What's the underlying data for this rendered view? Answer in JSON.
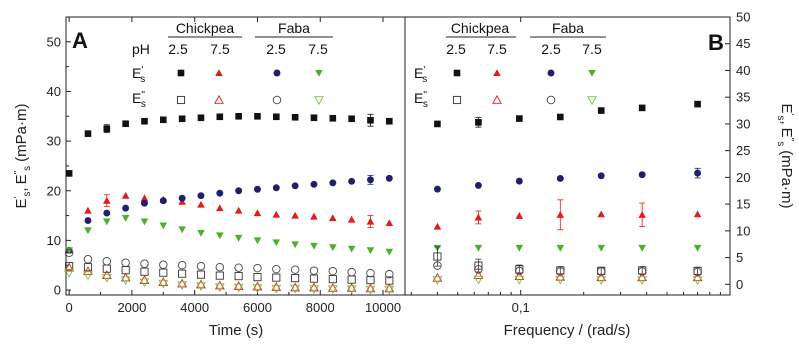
{
  "chart_data": [
    {
      "panel": "A",
      "type": "scatter",
      "xlabel": "Time (s)",
      "ylabel_main": "E",
      "ylabel_unit": "(mPa·m)",
      "xlim": [
        -100,
        10700
      ],
      "ylim": [
        -1,
        55
      ],
      "xticks": [
        0,
        2000,
        4000,
        6000,
        8000,
        10000
      ],
      "xtick_labels": [
        "0",
        "2000",
        "4000",
        "6000",
        "8000",
        "10000"
      ],
      "yticks": [
        0,
        10,
        20,
        30,
        40,
        50
      ],
      "ytick_labels": [
        "0",
        "10",
        "20",
        "30",
        "40",
        "50"
      ],
      "series": [
        {
          "key": "cp25_e1",
          "marker": "square",
          "filled": true,
          "color": "#111111",
          "x": [
            0,
            600,
            1200,
            1800,
            2400,
            3000,
            3600,
            4200,
            4800,
            5400,
            6000,
            6600,
            7200,
            7800,
            8400,
            9000,
            9600,
            10200
          ],
          "y": [
            23.5,
            31.5,
            32.5,
            33.5,
            34,
            34.3,
            34.5,
            34.7,
            34.9,
            35,
            35,
            34.9,
            34.8,
            34.7,
            34.6,
            34.5,
            34.2,
            34
          ],
          "err": [
            0,
            0,
            0.8,
            0,
            0,
            0,
            0,
            0,
            0,
            0,
            0,
            0,
            0,
            0,
            0,
            0,
            1.2,
            0
          ]
        },
        {
          "key": "cp75_e1",
          "marker": "triangle-up",
          "filled": true,
          "color": "#e41a1c",
          "x": [
            0,
            600,
            1200,
            1800,
            2400,
            3000,
            3600,
            4200,
            4800,
            5400,
            6000,
            6600,
            7200,
            7800,
            8400,
            9000,
            9600,
            10200
          ],
          "y": [
            8,
            16,
            18,
            19,
            18.5,
            18.2,
            17.8,
            17.2,
            16.5,
            16,
            15.5,
            15.2,
            15,
            14.8,
            14.5,
            14.2,
            13.8,
            13.5
          ],
          "err": [
            0,
            0,
            1.2,
            0,
            0,
            0,
            0,
            0,
            0,
            0,
            0,
            0,
            0,
            0,
            0,
            0,
            1.2,
            0
          ]
        },
        {
          "key": "fb25_e1",
          "marker": "circle",
          "filled": true,
          "color": "#1f1f6e",
          "x": [
            0,
            600,
            1200,
            1800,
            2400,
            3000,
            3600,
            4200,
            4800,
            5400,
            6000,
            6600,
            7200,
            7800,
            8400,
            9000,
            9600,
            10200
          ],
          "y": [
            8,
            14,
            15.5,
            16.5,
            17.5,
            18,
            18.5,
            19,
            19.5,
            20,
            20.3,
            20.6,
            21,
            21.3,
            21.6,
            21.9,
            22.2,
            22.5
          ],
          "err": [
            0,
            0,
            0,
            0,
            0,
            0,
            0,
            0,
            0,
            0,
            0,
            0,
            0,
            0,
            0,
            0,
            0.9,
            0
          ]
        },
        {
          "key": "fb75_e1",
          "marker": "triangle-down",
          "filled": true,
          "color": "#4daf2a",
          "x": [
            0,
            600,
            1200,
            1800,
            2400,
            3000,
            3600,
            4200,
            4800,
            5400,
            6000,
            6600,
            7200,
            7800,
            8400,
            9000,
            9600,
            10200
          ],
          "y": [
            8,
            12,
            13.8,
            14.5,
            13.8,
            13,
            12.2,
            11.5,
            11,
            10.5,
            10,
            9.6,
            9.2,
            8.9,
            8.6,
            8.3,
            8,
            7.7
          ],
          "err": [
            0,
            0,
            0,
            0,
            0,
            0,
            0,
            0,
            0,
            0,
            0,
            0,
            0,
            0,
            0,
            0,
            0,
            0
          ]
        },
        {
          "key": "cp25_e2",
          "marker": "square",
          "filled": false,
          "color": "#333333",
          "x": [
            0,
            600,
            1200,
            1800,
            2400,
            3000,
            3600,
            4200,
            4800,
            5400,
            6000,
            6600,
            7200,
            7800,
            8400,
            9000,
            9600,
            10200
          ],
          "y": [
            4.8,
            4.6,
            4.3,
            4,
            3.7,
            3.5,
            3.3,
            3.1,
            2.9,
            2.8,
            2.6,
            2.5,
            2.4,
            2.3,
            2.2,
            2.1,
            2,
            1.9
          ],
          "err": [
            0,
            0,
            0,
            0,
            0,
            0,
            0,
            0,
            0,
            0,
            0,
            0,
            0,
            0,
            0,
            0,
            0,
            0
          ]
        },
        {
          "key": "cp75_e2",
          "marker": "triangle-up",
          "filled": false,
          "color": "#e41a1c",
          "x": [
            0,
            600,
            1200,
            1800,
            2400,
            3000,
            3600,
            4200,
            4800,
            5400,
            6000,
            6600,
            7200,
            7800,
            8400,
            9000,
            9600,
            10200
          ],
          "y": [
            4.5,
            3.8,
            3,
            2.5,
            2,
            1.6,
            1.3,
            1.1,
            0.9,
            0.8,
            0.7,
            0.6,
            0.5,
            0.5,
            0.4,
            0.4,
            0.3,
            0.3
          ],
          "err": [
            0,
            0,
            0,
            0,
            0,
            0,
            0,
            0,
            0,
            0,
            0,
            0,
            0,
            0,
            0,
            0,
            0,
            0
          ]
        },
        {
          "key": "fb25_e2",
          "marker": "circle",
          "filled": false,
          "color": "#444444",
          "x": [
            0,
            600,
            1200,
            1800,
            2400,
            3000,
            3600,
            4200,
            4800,
            5400,
            6000,
            6600,
            7200,
            7800,
            8400,
            9000,
            9600,
            10200
          ],
          "y": [
            7.5,
            6.2,
            5.8,
            5.5,
            5.3,
            5.1,
            5,
            4.8,
            4.6,
            4.5,
            4.4,
            4.2,
            4.1,
            3.9,
            3.8,
            3.6,
            3.4,
            3.2
          ],
          "err": [
            0,
            0,
            0,
            0,
            0,
            0,
            0,
            0,
            0,
            0,
            0,
            0,
            0,
            0,
            0,
            0,
            0,
            0
          ]
        },
        {
          "key": "fb75_e2",
          "marker": "triangle-down",
          "filled": false,
          "color": "#7fbf3f",
          "x": [
            0,
            600,
            1200,
            1800,
            2400,
            3000,
            3600,
            4200,
            4800,
            5400,
            6000,
            6600,
            7200,
            7800,
            8400,
            9000,
            9600,
            10200
          ],
          "y": [
            3.5,
            3,
            2.5,
            2,
            1.6,
            1.3,
            1,
            0.8,
            0.6,
            0.5,
            0.4,
            0.3,
            0.3,
            0.2,
            0.2,
            0.2,
            0.1,
            0.1
          ],
          "err": [
            0,
            0,
            0,
            0,
            0,
            0,
            0,
            0,
            0,
            0,
            0,
            0,
            0,
            0,
            0,
            0,
            0,
            0
          ]
        }
      ]
    },
    {
      "panel": "B",
      "type": "scatter",
      "xlabel": "Frequency / (rad/s)",
      "ylabel_main": "E",
      "ylabel_unit": "(mPa·m)",
      "xscale": "log",
      "xlim": [
        0.028,
        1.0
      ],
      "ylim": [
        -2,
        50
      ],
      "xticks": [
        0.1
      ],
      "xtick_labels": [
        "0,1"
      ],
      "yticks": [
        0,
        5,
        10,
        15,
        20,
        25,
        30,
        35,
        40,
        45,
        50
      ],
      "ytick_labels": [
        "0",
        "5",
        "10",
        "15",
        "20",
        "25",
        "30",
        "35",
        "40",
        "45",
        "50"
      ],
      "series": [
        {
          "key": "cp25_e1",
          "marker": "square",
          "filled": true,
          "color": "#111111",
          "x": [
            0.04,
            0.0628,
            0.0985,
            0.1546,
            0.2425,
            0.3805,
            0.7
          ],
          "y": [
            30,
            30.3,
            31,
            31.3,
            32.5,
            33,
            33.7
          ],
          "err": [
            0,
            0.9,
            0,
            0,
            0,
            0,
            0
          ]
        },
        {
          "key": "cp75_e1",
          "marker": "triangle-up",
          "filled": true,
          "color": "#e41a1c",
          "x": [
            0.04,
            0.0628,
            0.0985,
            0.1546,
            0.2425,
            0.3805,
            0.7
          ],
          "y": [
            10.8,
            12.5,
            12.8,
            13,
            13.1,
            13,
            13.1
          ],
          "err": [
            0,
            1.2,
            0,
            2.8,
            0,
            2.2,
            0
          ]
        },
        {
          "key": "fb25_e1",
          "marker": "circle",
          "filled": true,
          "color": "#1f1f6e",
          "x": [
            0.04,
            0.0628,
            0.0985,
            0.1546,
            0.2425,
            0.3805,
            0.7
          ],
          "y": [
            17.8,
            18.5,
            19.3,
            19.8,
            20.3,
            20.5,
            20.8
          ],
          "err": [
            0,
            0,
            0,
            0,
            0,
            0,
            0.9
          ]
        },
        {
          "key": "fb75_e1",
          "marker": "triangle-down",
          "filled": true,
          "color": "#4daf2a",
          "x": [
            0.04,
            0.0628,
            0.0985,
            0.1546,
            0.2425,
            0.3805,
            0.7
          ],
          "y": [
            6.8,
            6.8,
            6.8,
            6.8,
            6.8,
            6.8,
            6.8
          ],
          "err": [
            0,
            0,
            0,
            0,
            0,
            0,
            0
          ]
        },
        {
          "key": "cp25_e2",
          "marker": "square",
          "filled": false,
          "color": "#333333",
          "x": [
            0.04,
            0.0628,
            0.0985,
            0.1546,
            0.2425,
            0.3805,
            0.7
          ],
          "y": [
            5.2,
            3.5,
            2.8,
            2.6,
            2.5,
            2.6,
            2.5
          ],
          "err": [
            1.8,
            1.2,
            0.8,
            0.7,
            0.7,
            0.7,
            0.7
          ]
        },
        {
          "key": "cp75_e2",
          "marker": "triangle-up",
          "filled": false,
          "color": "#e41a1c",
          "x": [
            0.04,
            0.0628,
            0.0985,
            0.1546,
            0.2425,
            0.3805,
            0.7
          ],
          "y": [
            1.2,
            1.7,
            1.5,
            1.4,
            1.3,
            1.3,
            1.3
          ],
          "err": [
            0,
            0,
            0,
            0,
            0,
            0,
            0
          ]
        },
        {
          "key": "fb25_e2",
          "marker": "circle",
          "filled": false,
          "color": "#444444",
          "x": [
            0.04,
            0.0628,
            0.0985,
            0.1546,
            0.2425,
            0.3805,
            0.7
          ],
          "y": [
            3.5,
            2.8,
            2.5,
            2.4,
            2.4,
            2.4,
            2.3
          ],
          "err": [
            0,
            0,
            0,
            0,
            0,
            0,
            0
          ]
        },
        {
          "key": "fb75_e2",
          "marker": "triangle-down",
          "filled": false,
          "color": "#7fbf3f",
          "x": [
            0.04,
            0.0628,
            0.0985,
            0.1546,
            0.2425,
            0.3805,
            0.7
          ],
          "y": [
            0.8,
            0.9,
            0.9,
            0.9,
            0.8,
            0.8,
            0.8
          ],
          "err": [
            0,
            0,
            0,
            0,
            0,
            0,
            0
          ]
        }
      ]
    }
  ],
  "legend": {
    "groups": [
      "Chickpea",
      "Faba"
    ],
    "ph_label": "pH",
    "ph_values": [
      "2.5",
      "7.5",
      "2.5",
      "7.5"
    ],
    "row_main": "E",
    "row1_sup": "'",
    "row2_sup": "\"",
    "row_sub": "s"
  },
  "panel_labels": [
    "A",
    "B"
  ]
}
